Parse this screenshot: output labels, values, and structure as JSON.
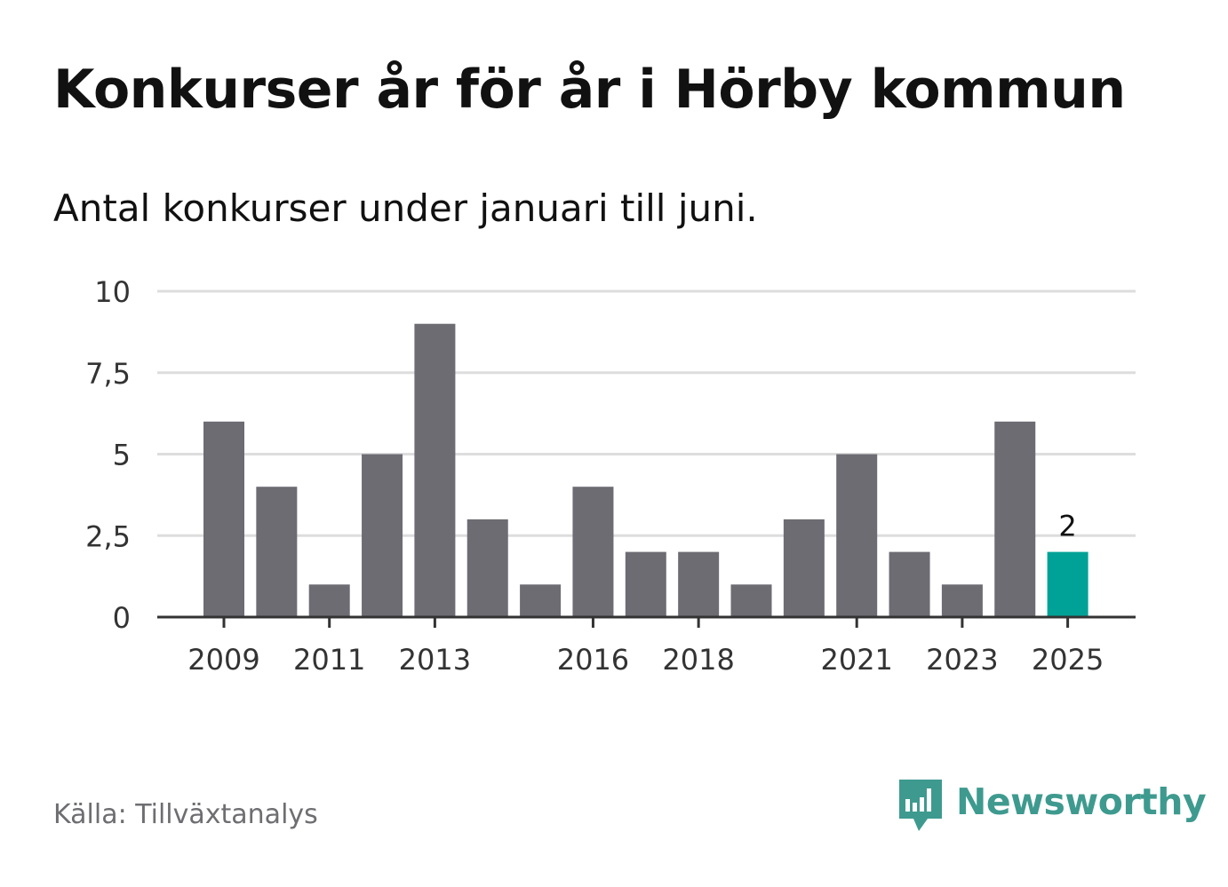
{
  "header": {
    "title": "Konkurser år för år i Hörby kommun",
    "subtitle": "Antal konkurser under januari till juni."
  },
  "footer": {
    "source": "Källa: Tillväxtanalys",
    "brand": "Newsworthy",
    "brand_icon": "newsworthy-logo-icon",
    "brand_color": "#3e9a8f"
  },
  "chart_data": {
    "type": "bar",
    "title": "Konkurser år för år i Hörby kommun",
    "subtitle": "Antal konkurser under januari till juni.",
    "xlabel": "",
    "ylabel": "",
    "categories": [
      "2009",
      "2010",
      "2011",
      "2012",
      "2013",
      "2014",
      "2015",
      "2016",
      "2017",
      "2018",
      "2019",
      "2020",
      "2021",
      "2022",
      "2023",
      "2024",
      "2025"
    ],
    "values": [
      6,
      4,
      1,
      5,
      9,
      3,
      1,
      4,
      2,
      2,
      1,
      3,
      5,
      2,
      1,
      6,
      2
    ],
    "shown_x_ticks": [
      "2009",
      "2011",
      "2013",
      "2016",
      "2018",
      "2021",
      "2023",
      "2025"
    ],
    "y_ticks": [
      0,
      2.5,
      5,
      7.5,
      10
    ],
    "y_tick_labels": [
      "0",
      "2,5",
      "5",
      "7,5",
      "10"
    ],
    "ylim": [
      0,
      10
    ],
    "grid": true,
    "highlight": {
      "category": "2025",
      "label": "2"
    },
    "colors": {
      "bar": "#6d6c73",
      "highlight": "#00a297",
      "grid": "#dddddd",
      "axis": "#333333"
    }
  }
}
